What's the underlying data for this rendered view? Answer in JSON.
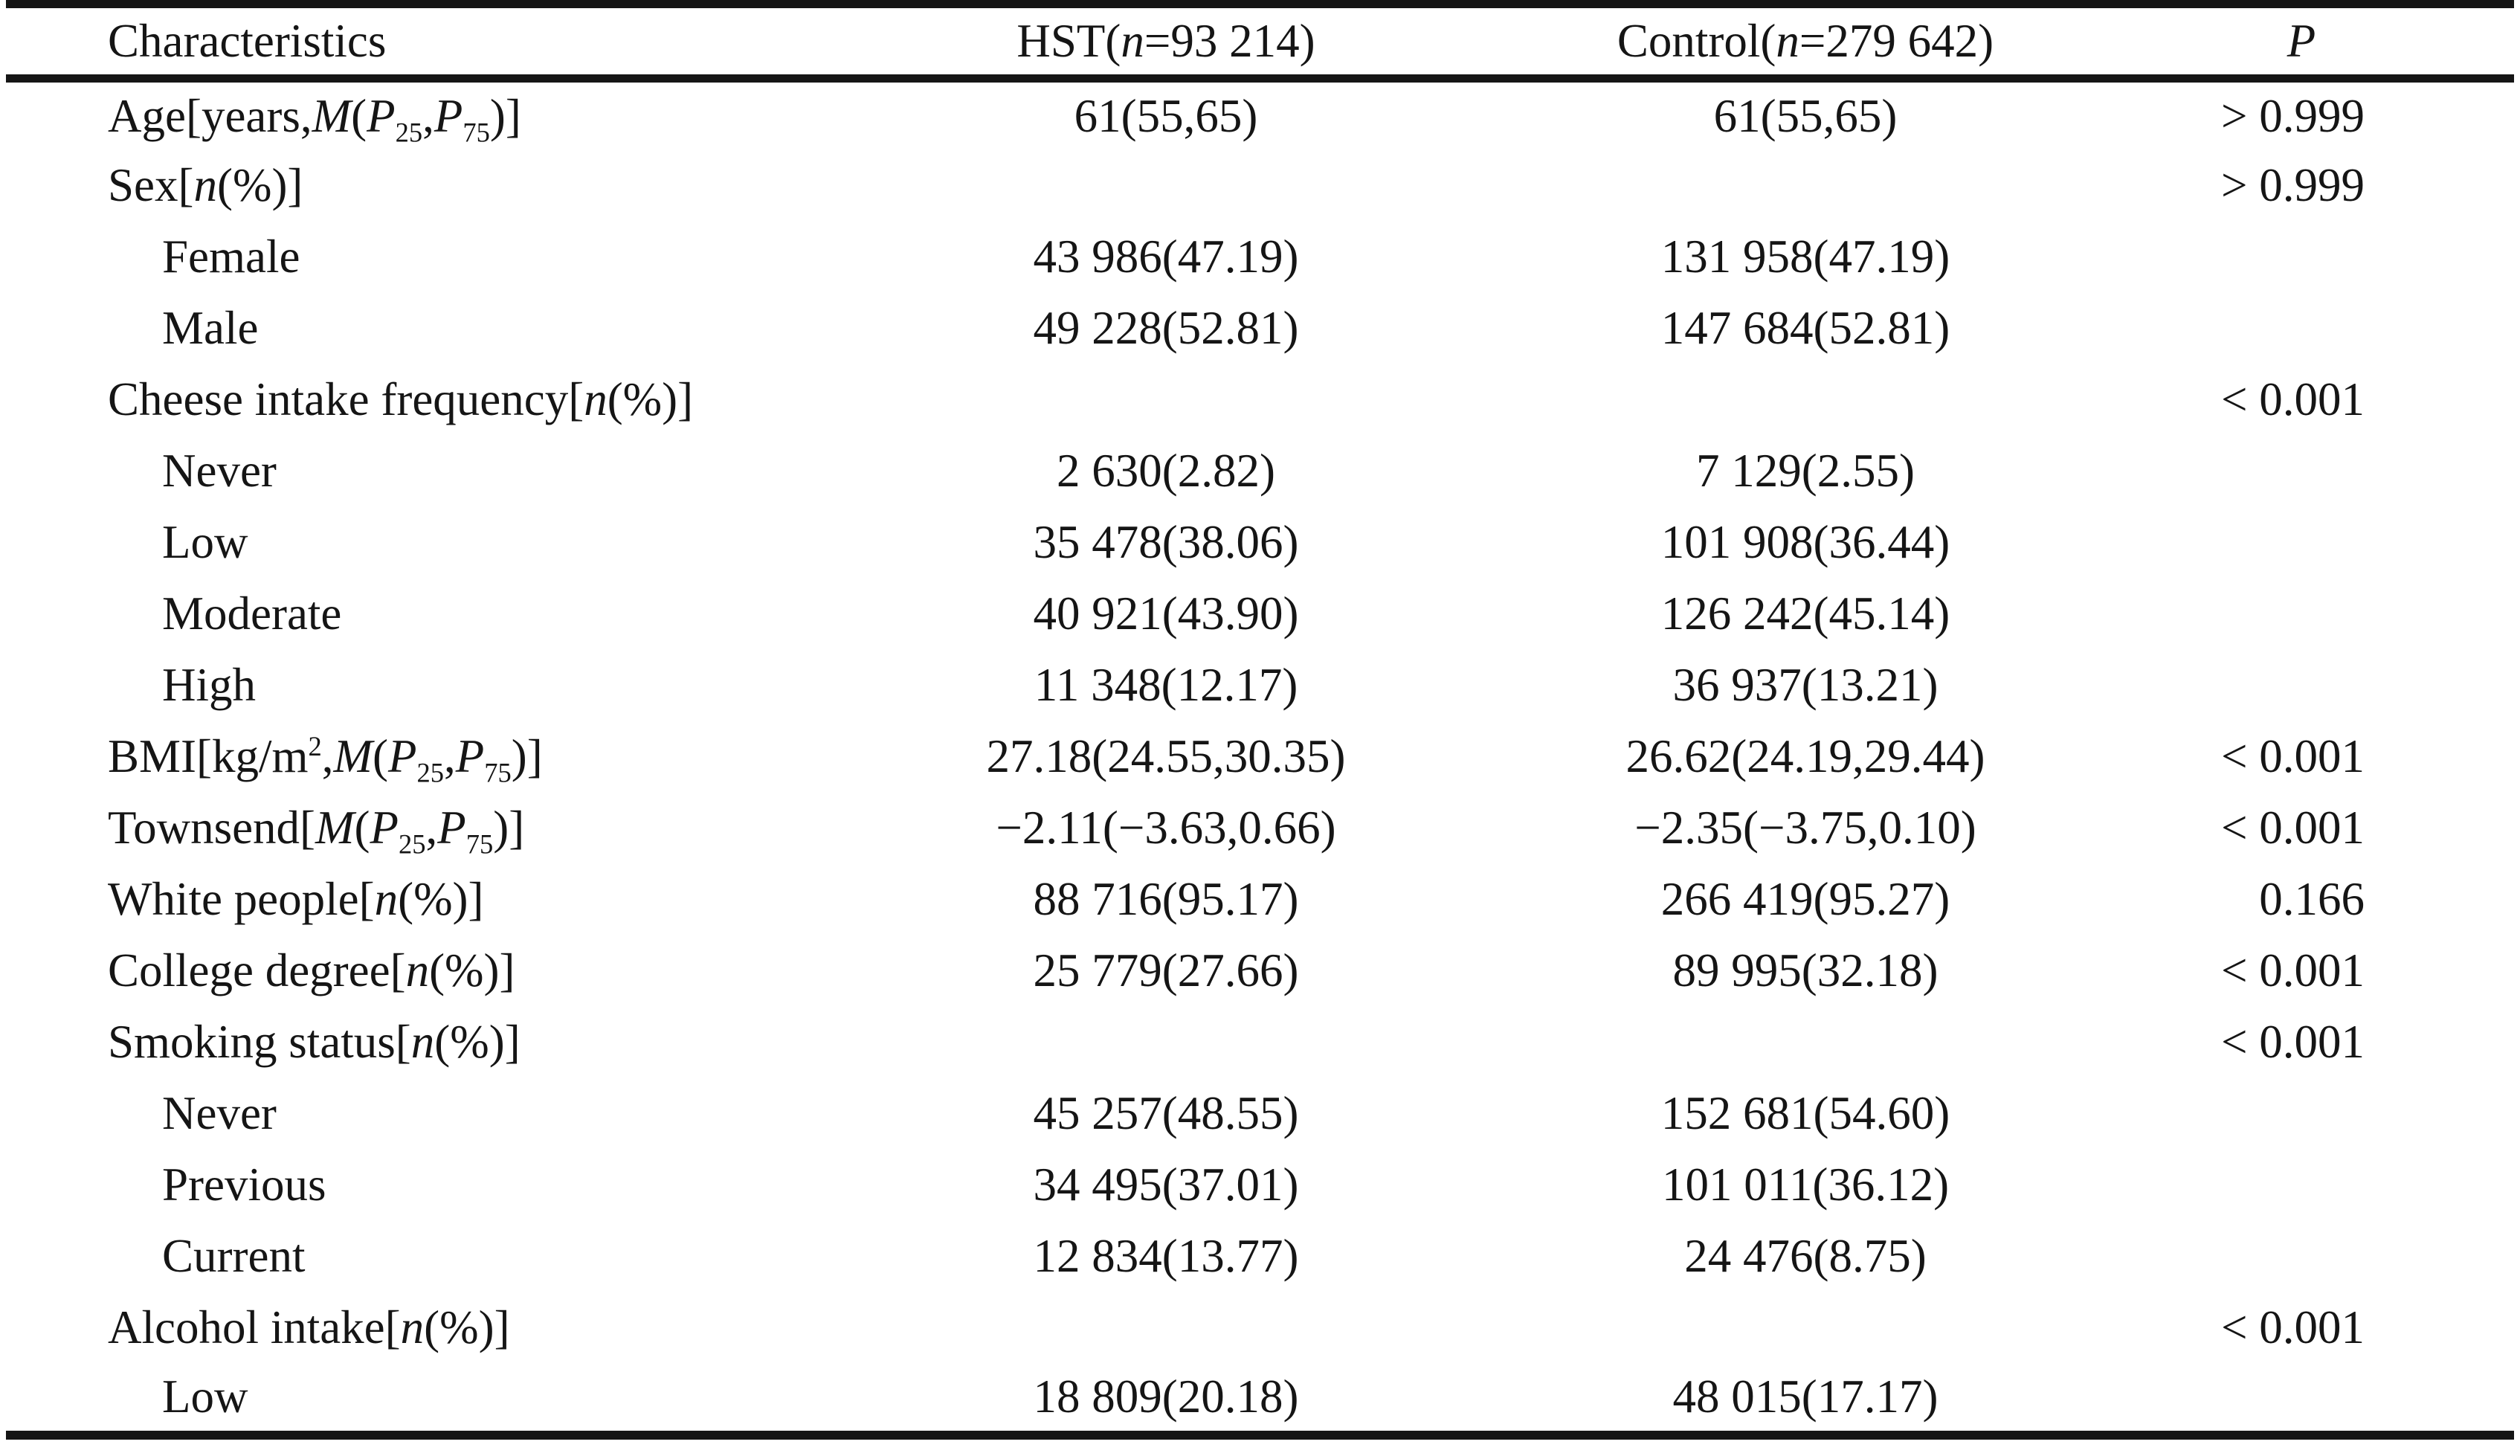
{
  "table": {
    "columns": [
      "Characteristics",
      "HST(*n*=93 214)",
      "Control(*n*=279 642)",
      "*P*"
    ],
    "rows": [
      {
        "label": "Age[years,*M*(*P*_25_,*P*_75_)]",
        "indent": false,
        "hst": "61(55,65)",
        "control": "61(55,65)",
        "p": "> 0.999"
      },
      {
        "label": "Sex[*n*(%)]",
        "indent": false,
        "hst": "",
        "control": "",
        "p": "> 0.999"
      },
      {
        "label": "Female",
        "indent": true,
        "hst": "43 986(47.19)",
        "control": "131 958(47.19)",
        "p": ""
      },
      {
        "label": "Male",
        "indent": true,
        "hst": "49 228(52.81)",
        "control": "147 684(52.81)",
        "p": ""
      },
      {
        "label": "Cheese intake frequency[*n*(%)]",
        "indent": false,
        "hst": "",
        "control": "",
        "p": "< 0.001"
      },
      {
        "label": "Never",
        "indent": true,
        "hst": "2 630(2.82)",
        "control": "7 129(2.55)",
        "p": ""
      },
      {
        "label": "Low",
        "indent": true,
        "hst": "35 478(38.06)",
        "control": "101 908(36.44)",
        "p": ""
      },
      {
        "label": "Moderate",
        "indent": true,
        "hst": "40 921(43.90)",
        "control": "126 242(45.14)",
        "p": ""
      },
      {
        "label": "High",
        "indent": true,
        "hst": "11 348(12.17)",
        "control": "36 937(13.21)",
        "p": ""
      },
      {
        "label": "BMI[kg/m^2^,*M*(*P*_25_,*P*_75_)]",
        "indent": false,
        "hst": "27.18(24.55,30.35)",
        "control": "26.62(24.19,29.44)",
        "p": "< 0.001"
      },
      {
        "label": "Townsend[*M*(*P*_25_,*P*_75_)]",
        "indent": false,
        "hst": "−2.11(−3.63,0.66)",
        "control": "−2.35(−3.75,0.10)",
        "p": "< 0.001"
      },
      {
        "label": "White people[*n*(%)]",
        "indent": false,
        "hst": "88 716(95.17)",
        "control": "266 419(95.27)",
        "p": "0.166"
      },
      {
        "label": "College degree[*n*(%)]",
        "indent": false,
        "hst": "25 779(27.66)",
        "control": "89 995(32.18)",
        "p": "< 0.001"
      },
      {
        "label": "Smoking status[*n*(%)]",
        "indent": false,
        "hst": "",
        "control": "",
        "p": "< 0.001"
      },
      {
        "label": "Never",
        "indent": true,
        "hst": "45 257(48.55)",
        "control": "152 681(54.60)",
        "p": ""
      },
      {
        "label": "Previous",
        "indent": true,
        "hst": "34 495(37.01)",
        "control": "101 011(36.12)",
        "p": ""
      },
      {
        "label": "Current",
        "indent": true,
        "hst": "12 834(13.77)",
        "control": "24 476(8.75)",
        "p": ""
      },
      {
        "label": "Alcohol intake[*n*(%)]",
        "indent": false,
        "hst": "",
        "control": "",
        "p": "< 0.001"
      },
      {
        "label": "Low",
        "indent": true,
        "hst": "18 809(20.18)",
        "control": "48 015(17.17)",
        "p": ""
      }
    ]
  }
}
